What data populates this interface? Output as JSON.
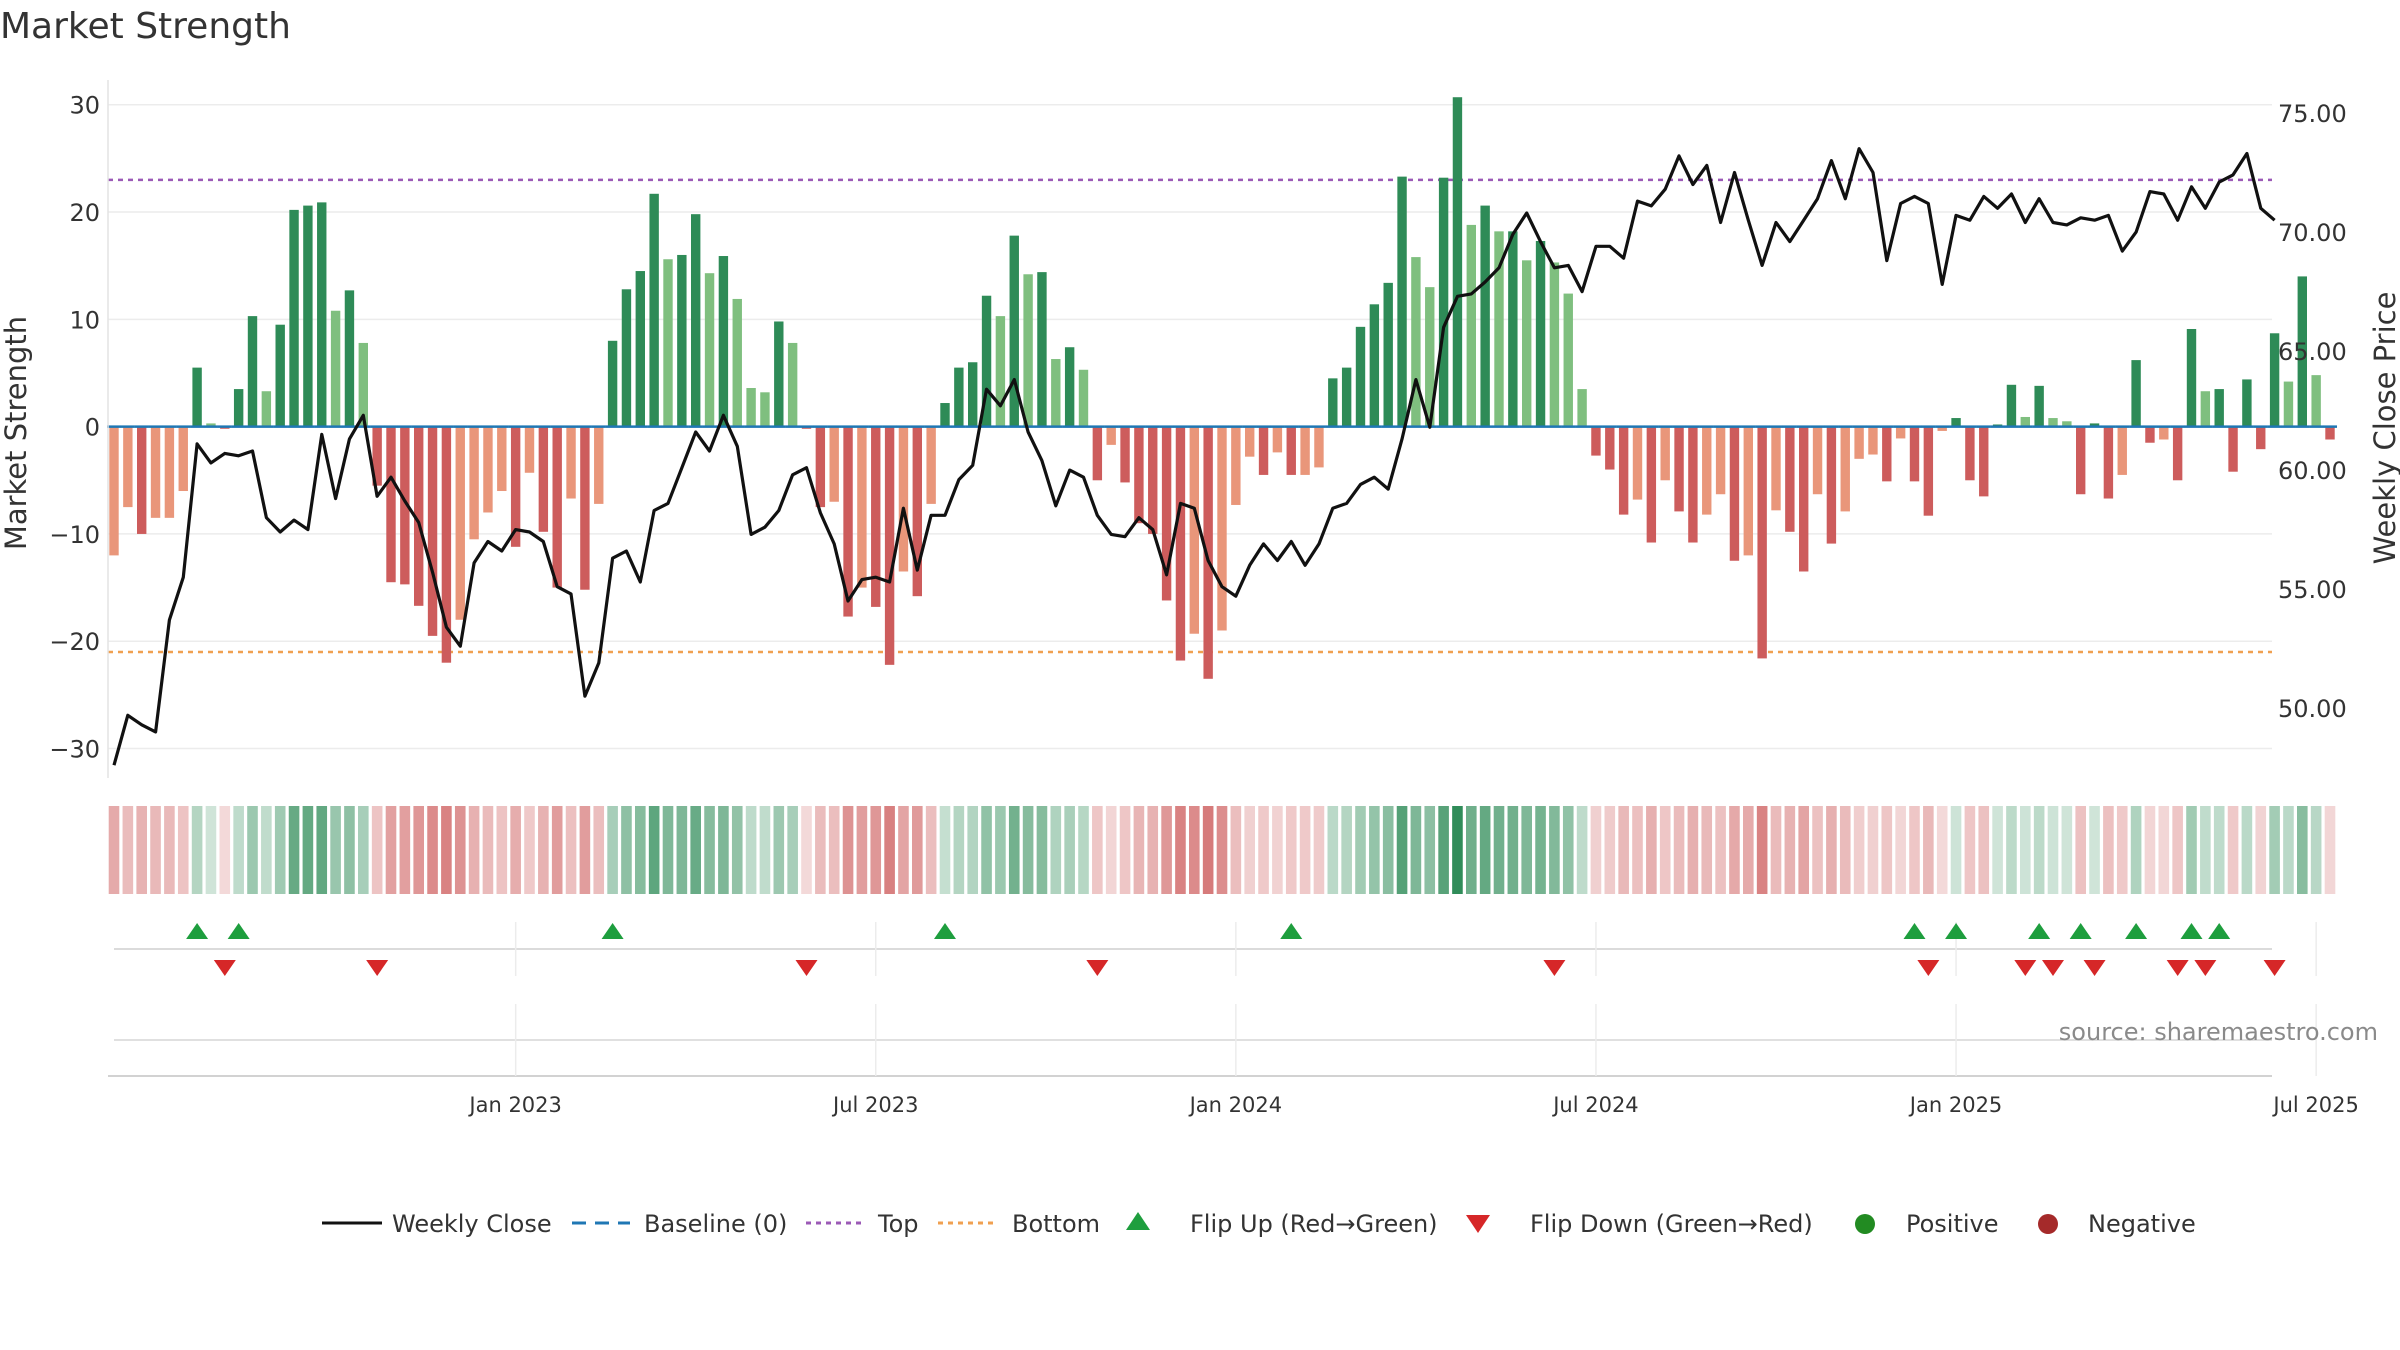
{
  "chart_data": {
    "type": "bar",
    "title": "Market Strength",
    "ylabel": "Market Strength",
    "y2label": "Weekly Close Price",
    "ylim": [
      -32,
      31
    ],
    "y_ticks": [
      -30,
      -20,
      -10,
      0,
      10,
      20,
      30
    ],
    "y_tick_labels": [
      "−30",
      "−20",
      "−10",
      "0",
      "10",
      "20",
      "30"
    ],
    "y2lim": [
      47.4,
      75.8
    ],
    "y2_ticks": [
      50,
      55,
      60,
      65,
      70,
      75
    ],
    "y2_tick_labels": [
      "50.00",
      "55.00",
      "60.00",
      "65.00",
      "70.00",
      "75.00"
    ],
    "top_level": 23.0,
    "bottom_level": -21.0,
    "baseline": 0,
    "x_ticks": [
      {
        "label": "Jan 2023",
        "week": 29
      },
      {
        "label": "Jul 2023",
        "week": 55
      },
      {
        "label": "Jan 2024",
        "week": 81
      },
      {
        "label": "Jul 2024",
        "week": 107
      },
      {
        "label": "Jan 2025",
        "week": 133
      },
      {
        "label": "Jul 2025",
        "week": 159
      }
    ],
    "source": "source: sharemaestro.com",
    "legend": {
      "weekly_close": "Weekly Close",
      "baseline": "Baseline (0)",
      "top": "Top",
      "bottom": "Bottom",
      "flip_up": "Flip Up (Red→Green)",
      "flip_down": "Flip Down (Green→Red)",
      "positive": "Positive",
      "negative": "Negative"
    },
    "colors": {
      "pos_dark": "#2e8b57",
      "pos_light": "#7fbf7f",
      "neg_dark": "#cd5c5c",
      "neg_light": "#e9967a",
      "close": "#111111",
      "baseline": "#1f77b4",
      "top": "#9b59b6",
      "bottom": "#f0a050",
      "flip_up": "#1e9e3e",
      "flip_down": "#d62728",
      "positive_dot": "#228b22",
      "negative_dot": "#a52a2a"
    },
    "series": [
      {
        "name": "Market Strength",
        "values": [
          -12,
          -7.5,
          -10,
          -8.5,
          -8.5,
          -6,
          5.5,
          0.3,
          -0.2,
          3.5,
          10.3,
          3.3,
          9.5,
          20.2,
          20.6,
          20.9,
          10.8,
          12.7,
          7.8,
          -5.5,
          -14.5,
          -14.7,
          -16.7,
          -19.5,
          -22,
          -18,
          -10.5,
          -8,
          -6,
          -11.2,
          -4.3,
          -9.8,
          -15,
          -6.7,
          -15.2,
          -7.2,
          8,
          12.8,
          14.5,
          21.7,
          15.6,
          16,
          19.8,
          14.3,
          15.9,
          11.9,
          3.6,
          3.2,
          9.8,
          7.8,
          -0.2,
          -7.5,
          -7,
          -17.7,
          -15,
          -16.8,
          -22.2,
          -13.5,
          -15.8,
          -7.2,
          2.2,
          5.5,
          6,
          12.2,
          10.3,
          17.8,
          14.2,
          14.4,
          6.3,
          7.4,
          5.3,
          -5,
          -1.7,
          -5.2,
          -9,
          -10,
          -16.2,
          -21.8,
          -19.3,
          -23.5,
          -19,
          -7.3,
          -2.8,
          -4.5,
          -2.4,
          -4.5,
          -4.5,
          -3.8,
          4.5,
          5.5,
          9.3,
          11.4,
          13.4,
          23.3,
          15.8,
          13,
          23.2,
          30.7,
          18.8,
          20.6,
          18.2,
          18.2,
          15.5,
          17.3,
          15.3,
          12.4,
          3.5,
          -2.7,
          -4,
          -8.2,
          -6.8,
          -10.8,
          -5,
          -7.9,
          -10.8,
          -8.2,
          -6.3,
          -12.5,
          -12,
          -21.6,
          -7.8,
          -9.8,
          -13.5,
          -6.3,
          -10.9,
          -7.9,
          -3,
          -2.6,
          -5.1,
          -1.1,
          -5.1,
          -8.3,
          -0.4,
          0.8,
          -5,
          -6.5,
          0.2,
          3.9,
          0.9,
          3.8,
          0.8,
          0.5,
          -6.3,
          0.3,
          -6.7,
          -4.5,
          6.2,
          -1.5,
          -1.2,
          -5,
          9.1,
          3.3,
          3.5,
          -4.2,
          4.4,
          -2.1,
          8.7,
          4.2,
          14,
          4.8,
          -1.2
        ]
      },
      {
        "name": "Weekly Close",
        "axis": "right",
        "values": [
          47.6,
          49.7,
          49.3,
          49,
          53.7,
          55.5,
          61.1,
          60.3,
          60.7,
          60.6,
          60.8,
          58,
          57.4,
          57.9,
          57.5,
          61.5,
          58.8,
          61.3,
          62.3,
          58.9,
          59.7,
          58.7,
          57.8,
          55.7,
          53.4,
          52.6,
          56.1,
          57,
          56.6,
          57.5,
          57.4,
          57,
          55.1,
          54.8,
          50.5,
          51.9,
          56.3,
          56.6,
          55.3,
          58.3,
          58.6,
          60.1,
          61.6,
          60.8,
          62.3,
          61,
          57.3,
          57.6,
          58.3,
          59.8,
          60.1,
          58.2,
          56.9,
          54.5,
          55.4,
          55.5,
          55.3,
          58.4,
          55.8,
          58.1,
          58.1,
          59.6,
          60.2,
          63.4,
          62.7,
          63.8,
          61.6,
          60.4,
          58.5,
          60,
          59.7,
          58.1,
          57.3,
          57.2,
          58,
          57.5,
          55.6,
          58.6,
          58.4,
          56.2,
          55.1,
          54.7,
          56,
          56.9,
          56.2,
          57,
          56,
          56.9,
          58.4,
          58.6,
          59.4,
          59.7,
          59.2,
          61.3,
          63.8,
          61.8,
          66,
          67.3,
          67.4,
          67.9,
          68.5,
          69.9,
          70.8,
          69.6,
          68.5,
          68.6,
          67.5,
          69.4,
          69.4,
          68.9,
          71.3,
          71.1,
          71.8,
          73.2,
          72,
          72.8,
          70.4,
          72.5,
          70.5,
          68.6,
          70.4,
          69.6,
          70.5,
          71.4,
          73,
          71.4,
          73.5,
          72.5,
          68.8,
          71.2,
          71.5,
          71.2,
          67.8,
          70.7,
          70.5,
          71.5,
          71,
          71.6,
          70.4,
          71.4,
          70.4,
          70.3,
          70.6,
          70.5,
          70.7,
          69.2,
          70,
          71.7,
          71.6,
          70.5,
          71.9,
          71,
          72.1,
          72.4,
          73.3,
          71,
          70.5
        ]
      }
    ],
    "flip_up_weeks": [
      6,
      9,
      36,
      60,
      85,
      130,
      133,
      139,
      142,
      146,
      150,
      152
    ],
    "flip_down_weeks": [
      8,
      19,
      50,
      71,
      104,
      131,
      138,
      140,
      143,
      149,
      151,
      156
    ]
  }
}
